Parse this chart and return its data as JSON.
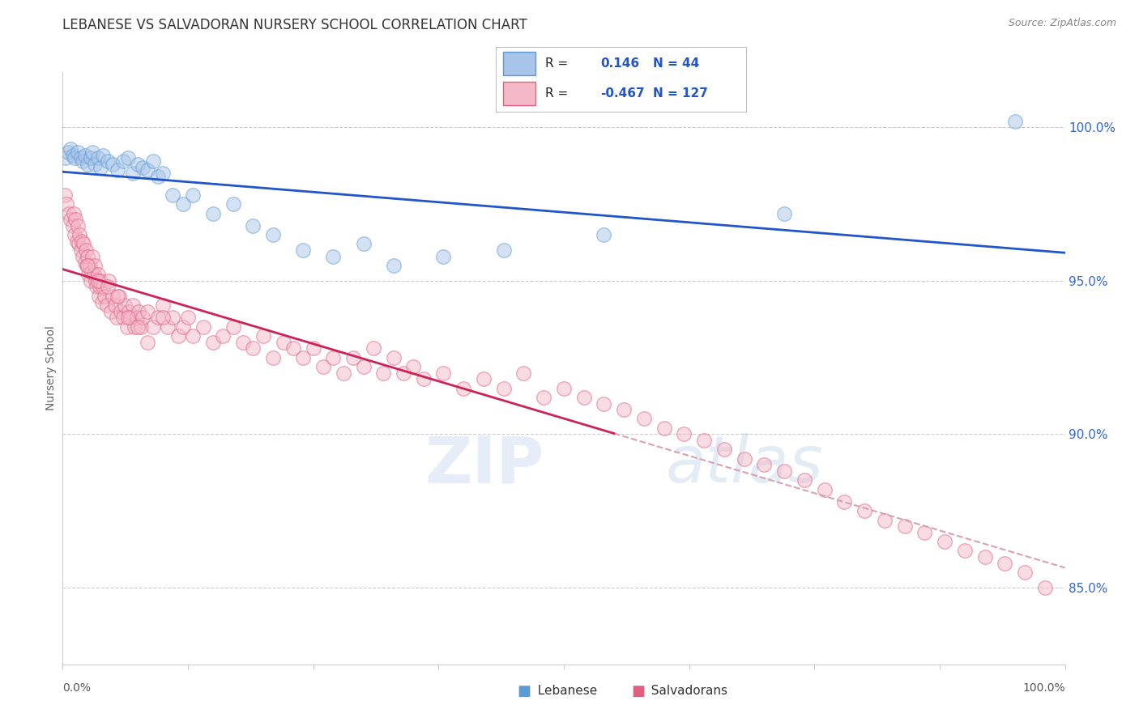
{
  "title": "LEBANESE VS SALVADORAN NURSERY SCHOOL CORRELATION CHART",
  "source": "Source: ZipAtlas.com",
  "ylabel": "Nursery School",
  "legend_label1": "Lebanese",
  "legend_label2": "Salvadorans",
  "r_lebanese": 0.146,
  "n_lebanese": 44,
  "r_salvadoran": -0.467,
  "n_salvadoran": 127,
  "y_ticks": [
    85.0,
    90.0,
    95.0,
    100.0
  ],
  "x_range": [
    0.0,
    100.0
  ],
  "y_range": [
    82.5,
    101.8
  ],
  "dot_color_lebanese": "#a8c4e8",
  "dot_edge_lebanese": "#5b9bd5",
  "dot_color_salvadoran": "#f4b8c8",
  "dot_edge_salvadoran": "#e06080",
  "line_color_lebanese": "#2255cc",
  "line_color_salvadoran": "#cc2255",
  "dashed_line_color": "#d8a0b0",
  "background_color": "#ffffff",
  "title_fontsize": 12,
  "axis_label_fontsize": 10,
  "tick_fontsize": 10,
  "dot_size": 160,
  "dot_alpha": 0.5,
  "lebanese_x": [
    0.3,
    0.5,
    0.8,
    1.0,
    1.2,
    1.5,
    1.8,
    2.0,
    2.2,
    2.5,
    2.8,
    3.0,
    3.2,
    3.5,
    3.8,
    4.0,
    4.5,
    5.0,
    5.5,
    6.0,
    6.5,
    7.0,
    7.5,
    8.0,
    8.5,
    9.0,
    9.5,
    10.0,
    11.0,
    12.0,
    13.0,
    15.0,
    17.0,
    19.0,
    21.0,
    24.0,
    27.0,
    30.0,
    33.0,
    38.0,
    44.0,
    54.0,
    72.0,
    95.0
  ],
  "lebanese_y": [
    99.0,
    99.2,
    99.3,
    99.1,
    99.0,
    99.2,
    99.0,
    98.9,
    99.1,
    98.8,
    99.0,
    99.2,
    98.8,
    99.0,
    98.7,
    99.1,
    98.9,
    98.8,
    98.6,
    98.9,
    99.0,
    98.5,
    98.8,
    98.7,
    98.6,
    98.9,
    98.4,
    98.5,
    97.8,
    97.5,
    97.8,
    97.2,
    97.5,
    96.8,
    96.5,
    96.0,
    95.8,
    96.2,
    95.5,
    95.8,
    96.0,
    96.5,
    97.2,
    100.2
  ],
  "salvadoran_x": [
    0.2,
    0.4,
    0.6,
    0.8,
    1.0,
    1.1,
    1.2,
    1.3,
    1.4,
    1.5,
    1.6,
    1.7,
    1.8,
    1.9,
    2.0,
    2.1,
    2.2,
    2.3,
    2.4,
    2.5,
    2.6,
    2.7,
    2.8,
    2.9,
    3.0,
    3.1,
    3.2,
    3.3,
    3.4,
    3.5,
    3.6,
    3.7,
    3.8,
    3.9,
    4.0,
    4.2,
    4.4,
    4.6,
    4.8,
    5.0,
    5.2,
    5.4,
    5.6,
    5.8,
    6.0,
    6.2,
    6.4,
    6.6,
    6.8,
    7.0,
    7.2,
    7.4,
    7.6,
    7.8,
    8.0,
    8.5,
    9.0,
    9.5,
    10.0,
    10.5,
    11.0,
    11.5,
    12.0,
    12.5,
    13.0,
    14.0,
    15.0,
    16.0,
    17.0,
    18.0,
    19.0,
    20.0,
    21.0,
    22.0,
    23.0,
    24.0,
    25.0,
    26.0,
    27.0,
    28.0,
    29.0,
    30.0,
    31.0,
    32.0,
    33.0,
    34.0,
    35.0,
    36.0,
    38.0,
    40.0,
    42.0,
    44.0,
    46.0,
    48.0,
    50.0,
    52.0,
    54.0,
    56.0,
    58.0,
    60.0,
    62.0,
    64.0,
    66.0,
    68.0,
    70.0,
    72.0,
    74.0,
    76.0,
    78.0,
    80.0,
    82.0,
    84.0,
    86.0,
    88.0,
    90.0,
    92.0,
    94.0,
    96.0,
    98.0,
    2.5,
    3.5,
    4.5,
    5.5,
    6.5,
    7.5,
    8.5,
    10.0
  ],
  "salvadoran_y": [
    97.8,
    97.5,
    97.2,
    97.0,
    96.8,
    97.2,
    96.5,
    97.0,
    96.3,
    96.8,
    96.2,
    96.5,
    96.0,
    96.3,
    95.8,
    96.2,
    95.6,
    96.0,
    95.5,
    95.8,
    95.2,
    95.5,
    95.0,
    95.3,
    95.8,
    95.2,
    95.5,
    95.0,
    94.8,
    95.2,
    94.5,
    94.8,
    95.0,
    94.3,
    94.8,
    94.5,
    94.2,
    95.0,
    94.0,
    94.5,
    94.2,
    93.8,
    94.5,
    94.0,
    93.8,
    94.2,
    93.5,
    94.0,
    93.8,
    94.2,
    93.5,
    93.8,
    94.0,
    93.5,
    93.8,
    94.0,
    93.5,
    93.8,
    94.2,
    93.5,
    93.8,
    93.2,
    93.5,
    93.8,
    93.2,
    93.5,
    93.0,
    93.2,
    93.5,
    93.0,
    92.8,
    93.2,
    92.5,
    93.0,
    92.8,
    92.5,
    92.8,
    92.2,
    92.5,
    92.0,
    92.5,
    92.2,
    92.8,
    92.0,
    92.5,
    92.0,
    92.2,
    91.8,
    92.0,
    91.5,
    91.8,
    91.5,
    92.0,
    91.2,
    91.5,
    91.2,
    91.0,
    90.8,
    90.5,
    90.2,
    90.0,
    89.8,
    89.5,
    89.2,
    89.0,
    88.8,
    88.5,
    88.2,
    87.8,
    87.5,
    87.2,
    87.0,
    86.8,
    86.5,
    86.2,
    86.0,
    85.8,
    85.5,
    85.0,
    95.5,
    95.0,
    94.8,
    94.5,
    93.8,
    93.5,
    93.0,
    93.8
  ]
}
